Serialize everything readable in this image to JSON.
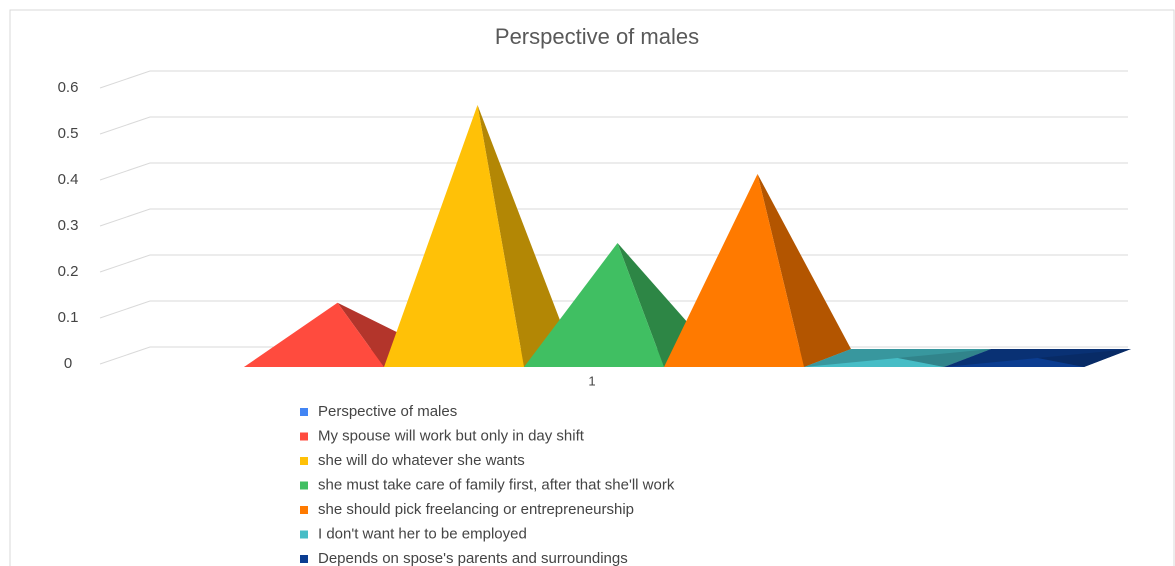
{
  "chart_data": {
    "type": "pyramid3d",
    "title": "Perspective of males",
    "categories": [
      "1"
    ],
    "series": [
      {
        "name": "Perspective of males",
        "color": "#4285f4",
        "values": [
          null
        ]
      },
      {
        "name": "My spouse will work but only in day shift",
        "color": "#ff4b3e",
        "values": [
          0.12
        ]
      },
      {
        "name": "she will do whatever she wants",
        "color": "#ffc107",
        "values": [
          0.55
        ]
      },
      {
        "name": "she must take care of family first, after that she'll work",
        "color": "#40bf62",
        "values": [
          0.25
        ]
      },
      {
        "name": "she should pick freelancing or entrepreneurship",
        "color": "#ff7a00",
        "values": [
          0.4
        ]
      },
      {
        "name": "I don't want her to be employed",
        "color": "#46bdc6",
        "values": [
          0
        ]
      },
      {
        "name": "Depends on spose's parents and surroundings",
        "color": "#0b3d91",
        "values": [
          0
        ]
      }
    ],
    "ylim": [
      0,
      0.6
    ],
    "yticks": [
      0,
      0.1,
      0.2,
      0.3,
      0.4,
      0.5,
      0.6
    ],
    "grid": true,
    "legend": "bottom"
  }
}
